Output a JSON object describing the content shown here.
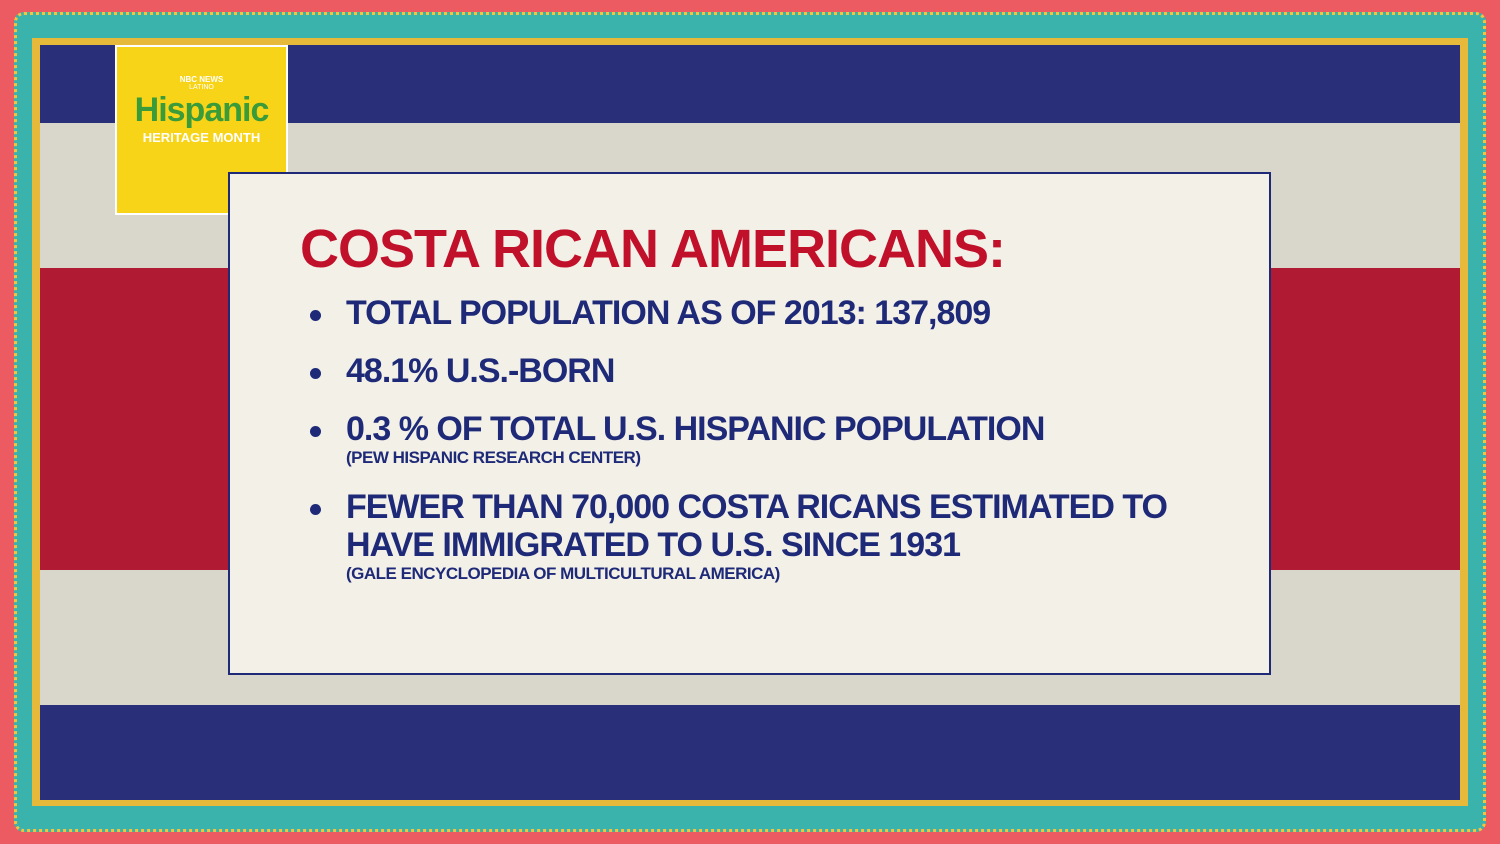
{
  "logo": {
    "network": "NBC NEWS",
    "sub": "LATINO",
    "title": "Hispanic",
    "subtitle": "HERITAGE MONTH"
  },
  "card": {
    "title": "COSTA RICAN AMERICANS:",
    "items": [
      {
        "text": "TOTAL POPULATION AS OF 2013: 137,809"
      },
      {
        "text": "48.1% U.S.-BORN"
      },
      {
        "text": "0.3 % OF TOTAL U.S. HISPANIC POPULATION",
        "source": "(PEW HISPANIC RESEARCH CENTER)"
      },
      {
        "text": "FEWER THAN 70,000 COSTA RICANS ESTIMATED TO HAVE IMMIGRATED TO U.S. SINCE 1931",
        "source": "(GALE ENCYCLOPEDIA OF MULTICULTURAL AMERICA)"
      }
    ]
  }
}
